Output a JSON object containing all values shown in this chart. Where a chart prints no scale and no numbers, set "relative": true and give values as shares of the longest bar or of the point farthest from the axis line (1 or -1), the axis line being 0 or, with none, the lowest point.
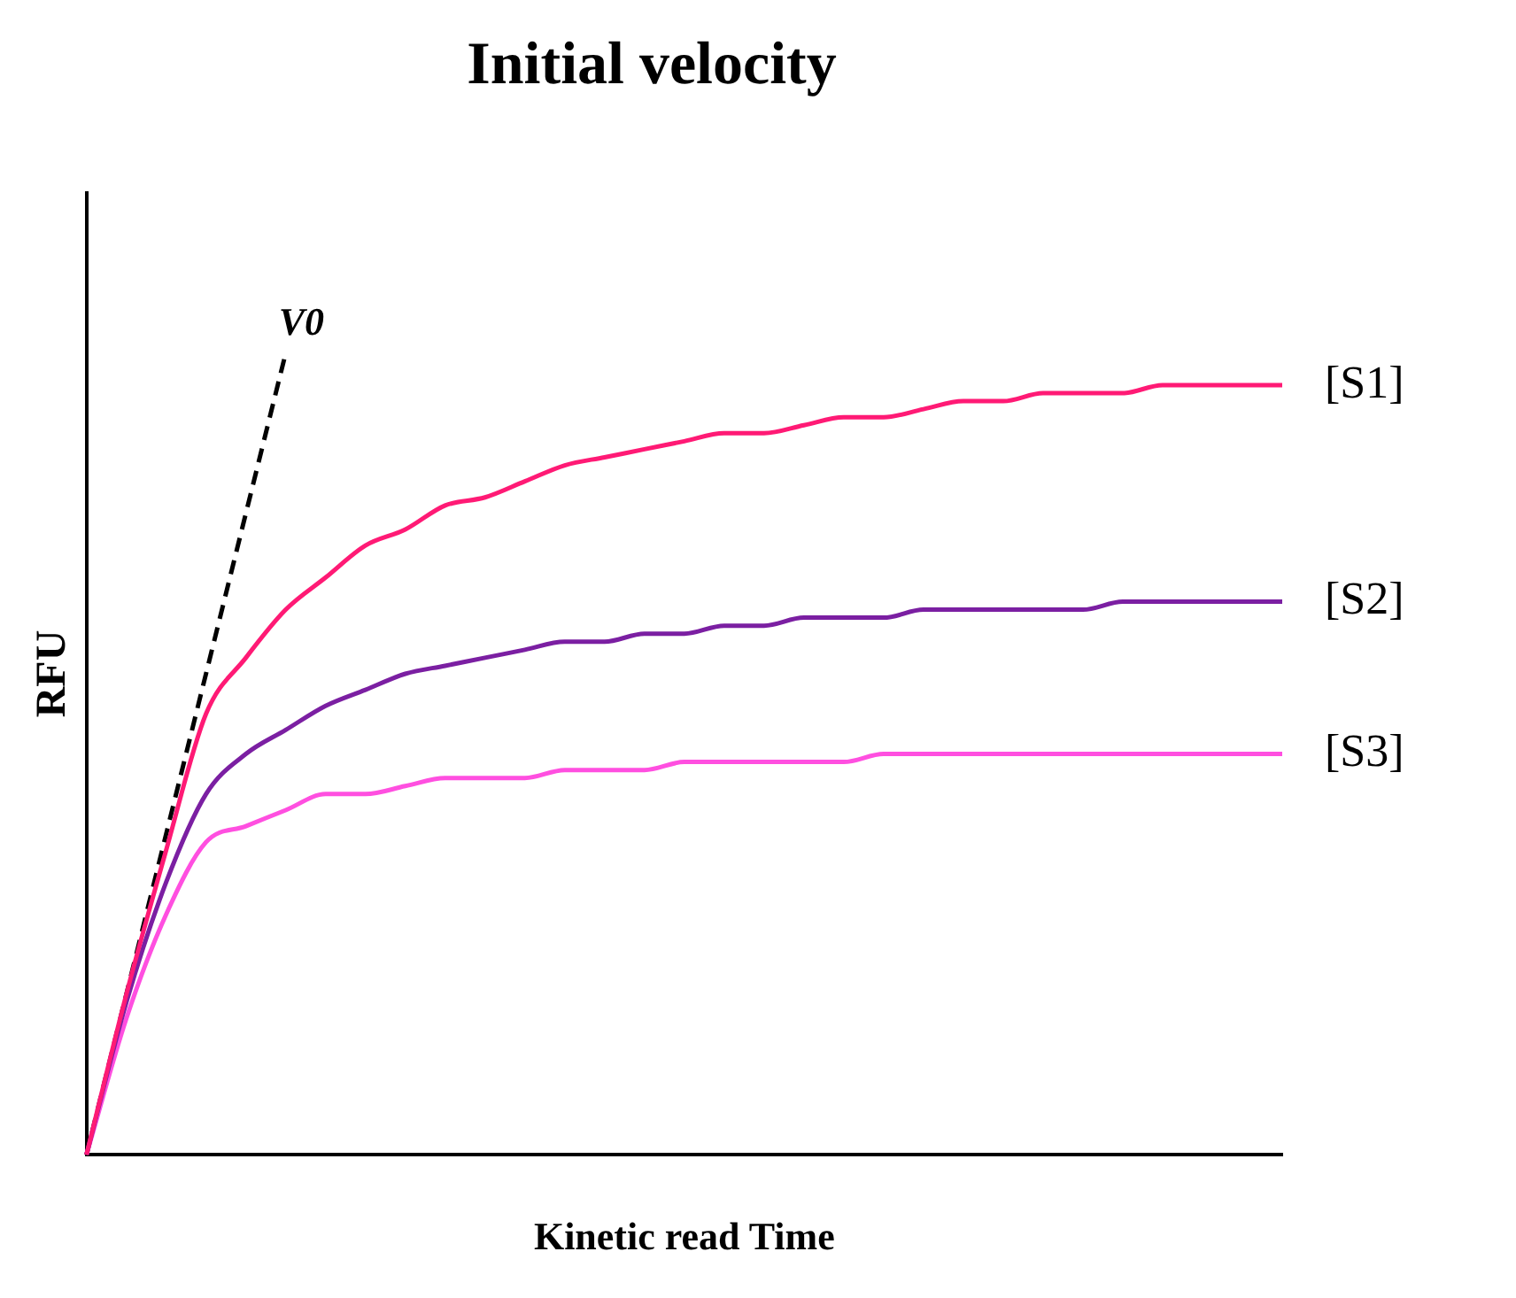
{
  "chart_data": {
    "type": "line",
    "title": "Initial velocity",
    "xlabel": "Kinetic read Time",
    "ylabel": "RFU",
    "relative": true,
    "legend": false,
    "grid": false,
    "marker": "none",
    "categories": [
      null,
      null,
      null,
      null,
      null,
      null,
      null,
      null,
      null,
      null,
      null,
      null,
      null,
      null,
      null,
      null,
      null,
      null,
      null,
      null,
      null,
      null,
      null,
      null,
      null,
      null,
      null,
      null,
      null,
      null,
      null
    ],
    "series": [
      {
        "name": "[S1]",
        "color": "#ff1a75",
        "values": [
          0,
          0.2,
          0.38,
          0.55,
          0.62,
          0.68,
          0.72,
          0.76,
          0.78,
          0.81,
          0.82,
          0.84,
          0.86,
          0.87,
          0.88,
          0.89,
          0.9,
          0.9,
          0.91,
          0.92,
          0.92,
          0.93,
          0.94,
          0.94,
          0.95,
          0.95,
          0.95,
          0.96,
          0.96,
          0.96,
          0.96
        ]
      },
      {
        "name": "[S2]",
        "color": "#7b1fa2",
        "values": [
          0,
          0.19,
          0.34,
          0.45,
          0.5,
          0.53,
          0.56,
          0.58,
          0.6,
          0.61,
          0.62,
          0.63,
          0.64,
          0.64,
          0.65,
          0.65,
          0.66,
          0.66,
          0.67,
          0.67,
          0.67,
          0.68,
          0.68,
          0.68,
          0.68,
          0.68,
          0.69,
          0.69,
          0.69,
          0.69,
          0.69
        ]
      },
      {
        "name": "[S3]",
        "color": "#ff4fe0",
        "values": [
          0,
          0.17,
          0.3,
          0.39,
          0.41,
          0.43,
          0.45,
          0.45,
          0.46,
          0.47,
          0.47,
          0.47,
          0.48,
          0.48,
          0.48,
          0.49,
          0.49,
          0.49,
          0.49,
          0.49,
          0.5,
          0.5,
          0.5,
          0.5,
          0.5,
          0.5,
          0.5,
          0.5,
          0.5,
          0.5,
          0.5
        ]
      },
      {
        "name": "V0",
        "color": "#000000",
        "line_style": "dashed",
        "values": [
          0,
          null,
          null,
          null,
          null,
          1.0,
          null,
          null,
          null,
          null,
          null,
          null,
          null,
          null,
          null,
          null,
          null,
          null,
          null,
          null,
          null,
          null,
          null,
          null,
          null,
          null,
          null,
          null,
          null,
          null,
          null
        ]
      }
    ]
  }
}
